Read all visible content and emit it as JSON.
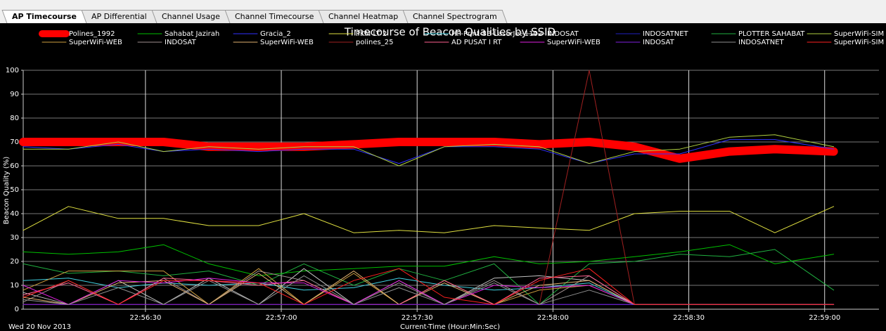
{
  "tabs": [
    "AP Timecourse",
    "AP Differential",
    "Channel Usage",
    "Channel Timecourse",
    "Channel Heatmap",
    "Channel Spectrogram"
  ],
  "chart_data": {
    "type": "line",
    "title": "Timecourse of Beacon Qualities by SSID",
    "x_label": "Current-Time (Hour:Min:Sec)",
    "y_label": "Beacon Quality (%)",
    "date_label": "Wed 20 Nov 2013",
    "x": [
      82563,
      82573,
      82584,
      82594,
      82604,
      82615,
      82625,
      82636,
      82646,
      82656,
      82667,
      82677,
      82688,
      82698,
      82708,
      82719,
      82729,
      82742
    ],
    "xlim": [
      82563,
      82752
    ],
    "xticks": [
      {
        "value": 82590,
        "label": "22:56:30"
      },
      {
        "value": 82620,
        "label": "22:57:00"
      },
      {
        "value": 82650,
        "label": "22:57:30"
      },
      {
        "value": 82680,
        "label": "22:58:00"
      },
      {
        "value": 82710,
        "label": "22:58:30"
      },
      {
        "value": 82740,
        "label": "22:59:00"
      }
    ],
    "ylim": [
      0,
      100
    ],
    "yticks": [
      0,
      10,
      20,
      30,
      40,
      50,
      60,
      70,
      80,
      90,
      100
    ],
    "grid": true,
    "series": [
      {
        "name": "Polines_1992",
        "color": "#ff0000",
        "width": 12,
        "values": [
          70,
          70,
          70,
          70,
          68,
          68,
          68,
          69,
          70,
          70,
          70,
          69,
          70,
          68,
          63,
          66,
          67,
          66
        ]
      },
      {
        "name": "Sahabat Jazirah",
        "color": "#00c000",
        "width": 1,
        "values": [
          24,
          23,
          24,
          27,
          19,
          14,
          16,
          17,
          18,
          18,
          22,
          19,
          20,
          22,
          24,
          27,
          19,
          23
        ]
      },
      {
        "name": "Gracia_2",
        "color": "#3030ff",
        "width": 1,
        "values": [
          68,
          67,
          69,
          66,
          67,
          66,
          67,
          67,
          61,
          68,
          68,
          67,
          61,
          65,
          65,
          71,
          71,
          67
        ]
      },
      {
        "name": "PKM LT 2",
        "color": "#e0e040",
        "width": 1,
        "values": [
          33,
          43,
          38,
          38,
          35,
          35,
          40,
          32,
          33,
          32,
          35,
          34,
          33,
          40,
          41,
          41,
          32,
          43
        ]
      },
      {
        "name": "HP-Print-8B-LaserJet 1102",
        "color": "#40d0e0",
        "width": 1,
        "values": [
          12,
          13,
          9,
          11,
          10,
          11,
          8,
          9,
          13,
          10,
          8,
          9,
          11,
          2,
          2,
          2,
          2,
          2
        ]
      },
      {
        "name": "INDOSAT",
        "color": "#c0c0c0",
        "width": 1,
        "values": [
          7,
          2,
          12,
          2,
          13,
          2,
          17,
          2,
          12,
          2,
          13,
          14,
          12,
          2,
          2,
          2,
          2,
          2
        ]
      },
      {
        "name": "INDOSATNET",
        "color": "#2020c0",
        "width": 1,
        "values": [
          2,
          2,
          2,
          2,
          2,
          2,
          2,
          2,
          2,
          2,
          2,
          2,
          2,
          2,
          2,
          2,
          2,
          2
        ]
      },
      {
        "name": "PLOTTER SAHABAT",
        "color": "#20b040",
        "width": 1,
        "values": [
          19,
          15,
          16,
          14,
          16,
          10,
          19,
          10,
          17,
          12,
          19,
          2,
          19,
          20,
          23,
          22,
          25,
          8
        ]
      },
      {
        "name": "SuperWiFi-SIM",
        "color": "#b0d040",
        "width": 1,
        "values": [
          67,
          67,
          70,
          66,
          68,
          67,
          68,
          68,
          60,
          68,
          69,
          68,
          61,
          66,
          67,
          72,
          73,
          68
        ]
      },
      {
        "name": "SuperWiFi-WEB",
        "color": "#d0a040",
        "width": 1,
        "values": [
          8,
          16,
          16,
          16,
          2,
          17,
          2,
          15,
          2,
          12,
          2,
          8,
          10,
          2,
          2,
          2,
          2,
          2
        ]
      },
      {
        "name": "INDOSAT",
        "color": "#a09090",
        "width": 1,
        "values": [
          3,
          12,
          2,
          13,
          2,
          16,
          12,
          2,
          11,
          2,
          12,
          2,
          14,
          2,
          2,
          2,
          2,
          2
        ]
      },
      {
        "name": "SuperWiFi-WEB",
        "color": "#e0b070",
        "width": 1,
        "values": [
          5,
          2,
          11,
          12,
          2,
          15,
          2,
          16,
          2,
          11,
          2,
          10,
          12,
          2,
          2,
          2,
          2,
          2
        ]
      },
      {
        "name": "polines_25",
        "color": "#a02020",
        "width": 1,
        "values": [
          2,
          2,
          2,
          2,
          2,
          2,
          2,
          2,
          2,
          2,
          2,
          2,
          100,
          2,
          2,
          2,
          2,
          2
        ]
      },
      {
        "name": "AD PUSAT I RT",
        "color": "#ff6090",
        "width": 1,
        "values": [
          6,
          11,
          2,
          13,
          12,
          10,
          12,
          2,
          2,
          12,
          2,
          13,
          14,
          2,
          2,
          2,
          2,
          2
        ]
      },
      {
        "name": "SuperWiFi-WEB",
        "color": "#e020e0",
        "width": 1,
        "values": [
          10,
          2,
          12,
          11,
          13,
          11,
          11,
          2,
          12,
          2,
          10,
          9,
          10,
          2,
          2,
          2,
          2,
          2
        ]
      },
      {
        "name": "INDOSAT",
        "color": "#8020e0",
        "width": 1,
        "values": [
          2,
          2,
          2,
          2,
          2,
          2,
          2,
          2,
          2,
          2,
          2,
          2,
          2,
          2,
          2,
          2,
          2,
          2
        ]
      },
      {
        "name": "INDOSATNET",
        "color": "#909090",
        "width": 1,
        "values": [
          4,
          2,
          9,
          2,
          12,
          2,
          14,
          2,
          9,
          2,
          11,
          2,
          8,
          2,
          2,
          2,
          2,
          2
        ]
      },
      {
        "name": "SuperWiFi-SIM",
        "color": "#ff2020",
        "width": 1,
        "values": [
          5,
          12,
          2,
          12,
          12,
          11,
          2,
          12,
          17,
          5,
          2,
          12,
          17,
          2,
          2,
          2,
          2,
          2
        ]
      }
    ]
  }
}
